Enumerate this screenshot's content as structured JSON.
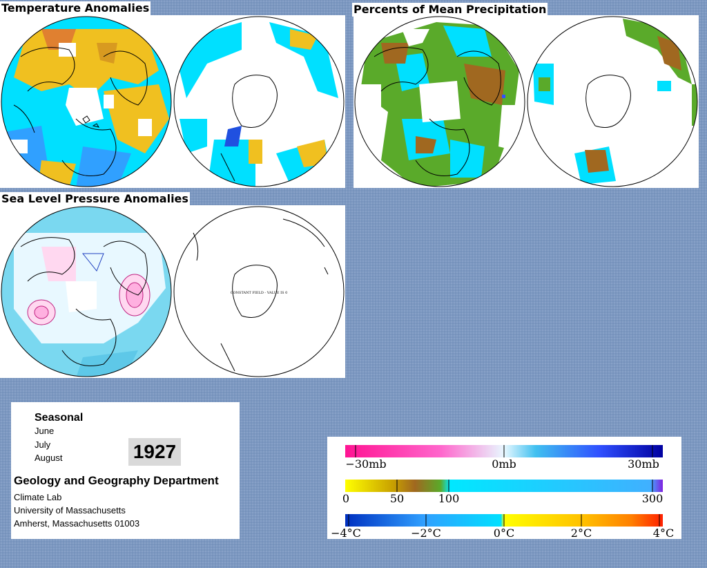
{
  "titles": {
    "temperature": "Temperature Anomalies",
    "precipitation": "Percents of Mean Precipitation",
    "pressure": "Sea Level Pressure Anomalies"
  },
  "pressure_south_note": "CONSTANT FIELD - VALUE IS 0",
  "info": {
    "season": "Seasonal",
    "months": [
      "June",
      "July",
      "August"
    ],
    "year": "1927",
    "department": "Geology and Geography Department",
    "address": [
      "Climate Lab",
      "University of Massachusetts",
      "Amherst, Massachusetts 01003"
    ]
  },
  "legend": {
    "pressure": {
      "labels": [
        "−30mb",
        "0mb",
        "30mb"
      ],
      "colors": [
        "#ff1493",
        "#ff66cc",
        "#ffccf0",
        "#e8f8ff",
        "#40c0f0",
        "#3050ff",
        "#0000a0"
      ]
    },
    "precipitation": {
      "labels": [
        "0",
        "50",
        "100",
        "300"
      ],
      "colors": [
        "#ffff00",
        "#c8a000",
        "#a06820",
        "#5aaa2a",
        "#00e8ff",
        "#40b0ff",
        "#8020e0"
      ]
    },
    "temperature": {
      "labels": [
        "−4°C",
        "−2°C",
        "0°C",
        "2°C",
        "4°C"
      ],
      "colors": [
        "#0030c0",
        "#30a0ff",
        "#00e0ff",
        "#ffff00",
        "#ffc000",
        "#ff8000",
        "#ff2000"
      ]
    }
  }
}
